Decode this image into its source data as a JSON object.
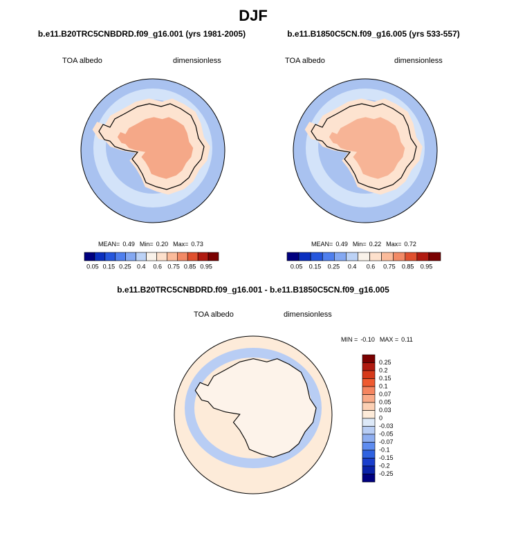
{
  "title": "DJF",
  "panels": [
    {
      "title": "b.e11.B20TRC5CNBDRD.f09_g16.001 (yrs 1981-2005)",
      "left_label": "TOA albedo",
      "right_label": "dimensionless",
      "stats": [
        "MEAN=",
        "0.49",
        "Min=",
        "0.20",
        "Max=",
        "0.73"
      ]
    },
    {
      "title": "b.e11.B1850C5CN.f09_g16.005 (yrs 533-557)",
      "left_label": "TOA albedo",
      "right_label": "dimensionless",
      "stats": [
        "MEAN=",
        "0.49",
        "Min=",
        "0.22",
        "Max=",
        "0.72"
      ]
    },
    {
      "title": "b.e11.B20TRC5CNBDRD.f09_g16.001 - b.e11.B1850C5CN.f09_g16.005",
      "left_label": "TOA albedo",
      "right_label": "dimensionless",
      "stats": [
        "MIN =",
        "-0.10",
        "MAX =",
        "0.11"
      ]
    }
  ],
  "colorbar": {
    "labels": [
      "0.05",
      "0.15",
      "0.25",
      "0.4",
      "0.6",
      "0.75",
      "0.85",
      "0.95"
    ],
    "colors": [
      "#00007f",
      "#0a2fbf",
      "#2556dd",
      "#4f7fee",
      "#84a8f2",
      "#bcd2f6",
      "#f9f2ea",
      "#fde0cc",
      "#fbbb9b",
      "#f28a66",
      "#e0502e",
      "#b01a10",
      "#7a0000"
    ]
  },
  "diff_colorbar": {
    "labels": [
      "0.25",
      "0.2",
      "0.15",
      "0.1",
      "0.07",
      "0.05",
      "0.03",
      "0",
      "-0.03",
      "-0.05",
      "-0.07",
      "-0.1",
      "-0.15",
      "-0.2",
      "-0.25"
    ],
    "colors": [
      "#7a0000",
      "#b01a10",
      "#d63a1a",
      "#ef5a30",
      "#f58560",
      "#f9aa88",
      "#fcd0b4",
      "#fdebd9",
      "#dde9f8",
      "#b8cdf4",
      "#8eaef0",
      "#5e8cf0",
      "#2f62e0",
      "#1a3fcc",
      "#0a22a8",
      "#00007f"
    ]
  }
}
